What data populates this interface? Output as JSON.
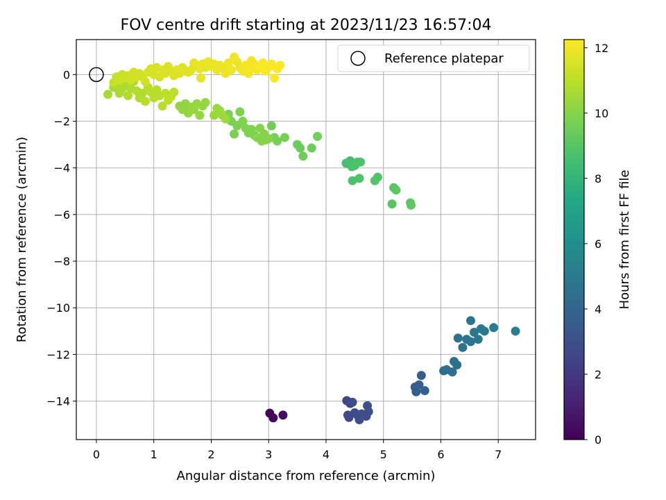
{
  "chart_data": {
    "type": "scatter",
    "title": "FOV centre drift starting at 2023/11/23 16:57:04",
    "xlabel": "Angular distance from reference (arcmin)",
    "ylabel": "Rotation from reference (arcmin)",
    "xlim": [
      -0.35,
      7.65
    ],
    "ylim": [
      -15.65,
      1.5
    ],
    "x_ticks": [
      0,
      1,
      2,
      3,
      4,
      5,
      6,
      7
    ],
    "y_ticks": [
      0,
      -2,
      -4,
      -6,
      -8,
      -10,
      -12,
      -14
    ],
    "x_tick_labels": [
      "0",
      "1",
      "2",
      "3",
      "4",
      "5",
      "6",
      "7"
    ],
    "y_tick_labels": [
      "0",
      "−2",
      "−4",
      "−6",
      "−8",
      "−10",
      "−12",
      "−14"
    ],
    "grid": true,
    "legend": {
      "placement": "top-right",
      "entries": [
        "Reference platepar"
      ]
    },
    "reference_point": {
      "x": 0,
      "y": 0,
      "marker": "open-circle"
    },
    "colorbar": {
      "label": "Hours from first FF file",
      "colormap": "viridis",
      "range": [
        0,
        12.25
      ],
      "ticks": [
        0,
        2,
        4,
        6,
        8,
        10,
        12
      ],
      "tick_labels": [
        "0",
        "2",
        "4",
        "6",
        "8",
        "10",
        "12"
      ]
    },
    "points": [
      [
        3.02,
        -14.52,
        0.1
      ],
      [
        3.08,
        -14.72,
        0.2
      ],
      [
        3.25,
        -14.6,
        0.3
      ],
      [
        4.36,
        -13.98,
        2.6
      ],
      [
        4.42,
        -14.1,
        2.6
      ],
      [
        4.46,
        -14.05,
        2.7
      ],
      [
        4.38,
        -14.6,
        2.7
      ],
      [
        4.4,
        -14.7,
        2.7
      ],
      [
        4.5,
        -14.5,
        2.8
      ],
      [
        4.55,
        -14.6,
        2.8
      ],
      [
        4.58,
        -14.8,
        2.8
      ],
      [
        4.62,
        -14.55,
        2.9
      ],
      [
        4.7,
        -14.65,
        2.9
      ],
      [
        4.72,
        -14.2,
        2.9
      ],
      [
        4.74,
        -14.45,
        3.0
      ],
      [
        5.55,
        -13.4,
        3.6
      ],
      [
        5.57,
        -13.6,
        3.6
      ],
      [
        5.62,
        -13.3,
        3.7
      ],
      [
        5.66,
        -12.9,
        3.7
      ],
      [
        5.72,
        -13.55,
        3.8
      ],
      [
        6.05,
        -12.7,
        4.3
      ],
      [
        6.1,
        -12.65,
        4.4
      ],
      [
        6.2,
        -12.75,
        4.4
      ],
      [
        6.23,
        -12.3,
        4.5
      ],
      [
        6.28,
        -12.45,
        4.5
      ],
      [
        6.3,
        -11.3,
        4.6
      ],
      [
        6.38,
        -11.7,
        4.6
      ],
      [
        6.45,
        -11.35,
        4.7
      ],
      [
        6.52,
        -11.45,
        4.8
      ],
      [
        6.52,
        -10.55,
        4.8
      ],
      [
        6.58,
        -11.05,
        4.9
      ],
      [
        6.65,
        -11.35,
        4.9
      ],
      [
        6.7,
        -10.9,
        5.0
      ],
      [
        6.76,
        -11.0,
        5.0
      ],
      [
        6.92,
        -10.85,
        5.1
      ],
      [
        7.3,
        -11.0,
        5.2
      ],
      [
        4.35,
        -3.8,
        8.6
      ],
      [
        4.42,
        -3.7,
        8.6
      ],
      [
        4.45,
        -3.95,
        8.7
      ],
      [
        4.5,
        -3.9,
        8.7
      ],
      [
        4.55,
        -3.75,
        8.8
      ],
      [
        4.6,
        -3.75,
        8.8
      ],
      [
        4.46,
        -4.55,
        8.7
      ],
      [
        4.58,
        -4.45,
        8.8
      ],
      [
        4.85,
        -4.55,
        8.9
      ],
      [
        4.9,
        -4.4,
        8.9
      ],
      [
        5.15,
        -5.55,
        9.0
      ],
      [
        5.18,
        -4.85,
        9.0
      ],
      [
        5.22,
        -4.95,
        9.1
      ],
      [
        5.47,
        -5.5,
        9.1
      ],
      [
        5.48,
        -5.6,
        9.2
      ],
      [
        3.5,
        -3.0,
        9.4
      ],
      [
        3.55,
        -3.15,
        9.4
      ],
      [
        3.6,
        -3.5,
        9.5
      ],
      [
        3.75,
        -3.15,
        9.5
      ],
      [
        3.85,
        -2.65,
        9.6
      ],
      [
        3.05,
        -2.2,
        9.6
      ],
      [
        3.1,
        -2.7,
        9.6
      ],
      [
        3.15,
        -2.85,
        9.7
      ],
      [
        3.28,
        -2.7,
        9.7
      ],
      [
        2.3,
        -1.7,
        9.8
      ],
      [
        2.35,
        -2.0,
        9.8
      ],
      [
        2.4,
        -2.55,
        9.8
      ],
      [
        2.45,
        -2.2,
        9.8
      ],
      [
        2.5,
        -1.6,
        9.9
      ],
      [
        2.55,
        -2.0,
        9.9
      ],
      [
        2.6,
        -2.3,
        9.9
      ],
      [
        2.65,
        -2.5,
        9.9
      ],
      [
        2.7,
        -2.35,
        9.9
      ],
      [
        2.75,
        -2.6,
        9.9
      ],
      [
        2.8,
        -2.7,
        10.0
      ],
      [
        2.85,
        -2.3,
        10.0
      ],
      [
        2.88,
        -2.85,
        10.0
      ],
      [
        2.92,
        -2.55,
        10.0
      ],
      [
        2.95,
        -2.8,
        10.0
      ],
      [
        3.0,
        -2.75,
        10.0
      ],
      [
        1.45,
        -1.35,
        10.2
      ],
      [
        1.5,
        -1.5,
        10.2
      ],
      [
        1.55,
        -1.25,
        10.2
      ],
      [
        1.6,
        -1.65,
        10.2
      ],
      [
        1.65,
        -1.4,
        10.3
      ],
      [
        1.7,
        -1.5,
        10.3
      ],
      [
        1.75,
        -1.25,
        10.3
      ],
      [
        1.8,
        -1.75,
        10.3
      ],
      [
        1.85,
        -1.35,
        10.3
      ],
      [
        1.9,
        -1.2,
        10.3
      ],
      [
        2.05,
        -1.75,
        10.4
      ],
      [
        2.1,
        -1.45,
        10.4
      ],
      [
        2.15,
        -1.55,
        10.4
      ],
      [
        2.2,
        -1.75,
        10.4
      ],
      [
        2.25,
        -1.9,
        10.4
      ],
      [
        0.2,
        -0.85,
        10.6
      ],
      [
        0.3,
        -0.55,
        10.6
      ],
      [
        0.35,
        -0.35,
        10.7
      ],
      [
        0.4,
        -0.8,
        10.7
      ],
      [
        0.45,
        -0.6,
        10.7
      ],
      [
        0.5,
        -0.4,
        10.7
      ],
      [
        0.55,
        -0.9,
        10.8
      ],
      [
        0.6,
        -0.6,
        10.8
      ],
      [
        0.65,
        -0.3,
        10.8
      ],
      [
        0.7,
        -0.7,
        10.8
      ],
      [
        0.75,
        -1.0,
        10.8
      ],
      [
        0.8,
        -0.8,
        10.8
      ],
      [
        0.85,
        -1.15,
        10.9
      ],
      [
        0.9,
        -0.55,
        10.9
      ],
      [
        0.95,
        -0.75,
        10.9
      ],
      [
        1.0,
        -1.0,
        10.9
      ],
      [
        1.05,
        -0.65,
        10.9
      ],
      [
        1.1,
        -0.9,
        10.9
      ],
      [
        1.15,
        -1.35,
        10.9
      ],
      [
        1.2,
        -0.8,
        11.0
      ],
      [
        1.25,
        -1.1,
        11.0
      ],
      [
        1.3,
        -0.95,
        11.0
      ],
      [
        1.35,
        -0.75,
        11.0
      ],
      [
        0.3,
        -0.35,
        11.2
      ],
      [
        0.35,
        -0.1,
        11.2
      ],
      [
        0.4,
        -0.25,
        11.3
      ],
      [
        0.45,
        0.0,
        11.3
      ],
      [
        0.5,
        -0.15,
        11.3
      ],
      [
        0.55,
        -0.05,
        11.3
      ],
      [
        0.6,
        -0.2,
        11.4
      ],
      [
        0.65,
        0.1,
        11.4
      ],
      [
        0.7,
        -0.1,
        11.4
      ],
      [
        0.75,
        0.05,
        11.4
      ],
      [
        0.8,
        -0.1,
        11.4
      ],
      [
        0.85,
        -0.3,
        11.4
      ],
      [
        0.9,
        0.1,
        11.5
      ],
      [
        0.95,
        0.25,
        11.5
      ],
      [
        1.0,
        0.0,
        11.5
      ],
      [
        1.05,
        0.3,
        11.5
      ],
      [
        1.1,
        -0.1,
        11.5
      ],
      [
        1.15,
        0.2,
        11.6
      ],
      [
        1.2,
        0.05,
        11.6
      ],
      [
        1.25,
        0.35,
        11.6
      ],
      [
        1.3,
        0.15,
        11.6
      ],
      [
        1.35,
        -0.05,
        11.6
      ],
      [
        1.4,
        0.2,
        11.7
      ],
      [
        1.45,
        0.05,
        11.7
      ],
      [
        1.5,
        0.3,
        11.7
      ],
      [
        1.55,
        0.15,
        11.7
      ],
      [
        1.6,
        0.1,
        11.7
      ],
      [
        1.65,
        0.2,
        11.7
      ],
      [
        1.7,
        0.5,
        11.8
      ],
      [
        1.75,
        0.4,
        11.8
      ],
      [
        1.8,
        0.25,
        11.8
      ],
      [
        1.82,
        -0.15,
        11.8
      ],
      [
        1.85,
        0.45,
        11.8
      ],
      [
        1.9,
        0.3,
        11.8
      ],
      [
        1.95,
        0.55,
        11.9
      ],
      [
        2.0,
        0.35,
        11.9
      ],
      [
        2.05,
        0.45,
        11.9
      ],
      [
        2.1,
        0.2,
        11.9
      ],
      [
        2.15,
        0.4,
        11.9
      ],
      [
        2.2,
        0.3,
        11.9
      ],
      [
        2.25,
        0.05,
        11.9
      ],
      [
        2.3,
        0.5,
        12.0
      ],
      [
        2.35,
        0.2,
        12.0
      ],
      [
        2.4,
        0.75,
        12.0
      ],
      [
        2.45,
        0.55,
        12.0
      ],
      [
        2.5,
        0.3,
        12.0
      ],
      [
        2.55,
        0.15,
        12.0
      ],
      [
        2.6,
        0.4,
        12.1
      ],
      [
        2.65,
        0.05,
        12.1
      ],
      [
        2.7,
        0.6,
        12.1
      ],
      [
        2.72,
        0.3,
        12.1
      ],
      [
        2.75,
        0.45,
        12.1
      ],
      [
        2.8,
        0.2,
        12.1
      ],
      [
        2.85,
        0.35,
        12.2
      ],
      [
        2.9,
        0.5,
        12.2
      ],
      [
        2.95,
        0.15,
        12.2
      ],
      [
        3.0,
        0.3,
        12.2
      ],
      [
        3.05,
        0.45,
        12.2
      ],
      [
        3.1,
        -0.15,
        12.2
      ],
      [
        3.15,
        0.25,
        12.2
      ],
      [
        3.2,
        0.4,
        12.2
      ]
    ]
  }
}
